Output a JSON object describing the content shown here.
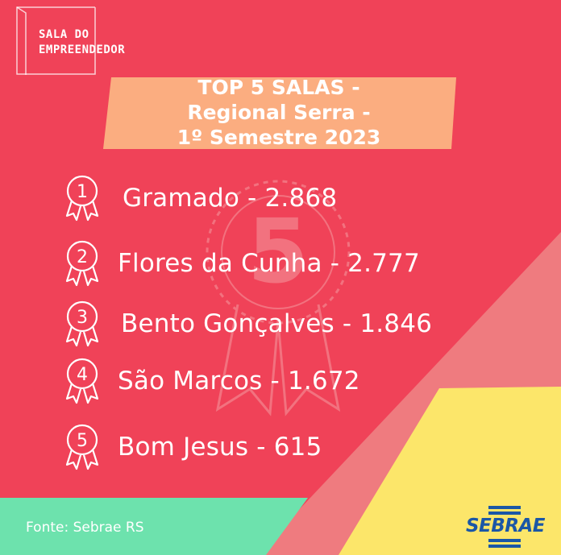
{
  "brand": {
    "logo_line1": "SALA DO",
    "logo_line2": "EMPREENDEDOR",
    "sponsor": "SEBRAE"
  },
  "title": {
    "line1": "TOP 5 SALAS -",
    "line2": "Regional Serra -",
    "line3": "1º Semestre 2023"
  },
  "ranking": [
    {
      "rank": "1",
      "text": "Gramado - 2.868"
    },
    {
      "rank": "2",
      "text": "Flores da Cunha - 2.777"
    },
    {
      "rank": "3",
      "text": "Bento Gonçalves - 1.846"
    },
    {
      "rank": "4",
      "text": "São Marcos - 1.672"
    },
    {
      "rank": "5",
      "text": "Bom Jesus - 615"
    }
  ],
  "watermark_number": "5",
  "source": "Fonte: Sebrae RS",
  "colors": {
    "background": "#f04258",
    "title_band": "#fbad80",
    "salmon_shape": "#ef7b7f",
    "yellow_shape": "#fce66a",
    "mint_band": "#6de2ad",
    "sebrae_blue": "#1b57a6"
  }
}
